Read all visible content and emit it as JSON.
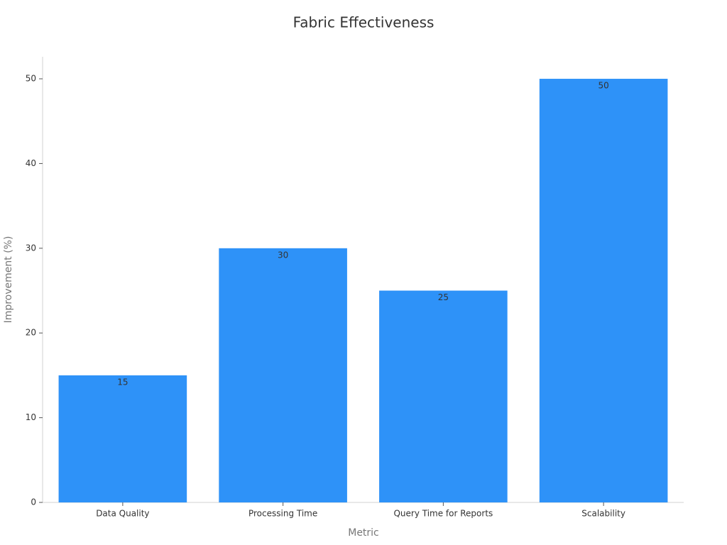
{
  "chart_data": {
    "type": "bar",
    "title": "Fabric Effectiveness",
    "x_label": "Metric",
    "y_label": "Improvement (%)",
    "categories": [
      "Data Quality",
      "Processing Time",
      "Query Time for Reports",
      "Scalability"
    ],
    "values": [
      15,
      30,
      25,
      50
    ],
    "color": "#2e92f8",
    "ylim": [
      0,
      52.6
    ],
    "yticks": [
      0,
      10,
      20,
      30,
      40,
      50
    ],
    "grid": false
  }
}
